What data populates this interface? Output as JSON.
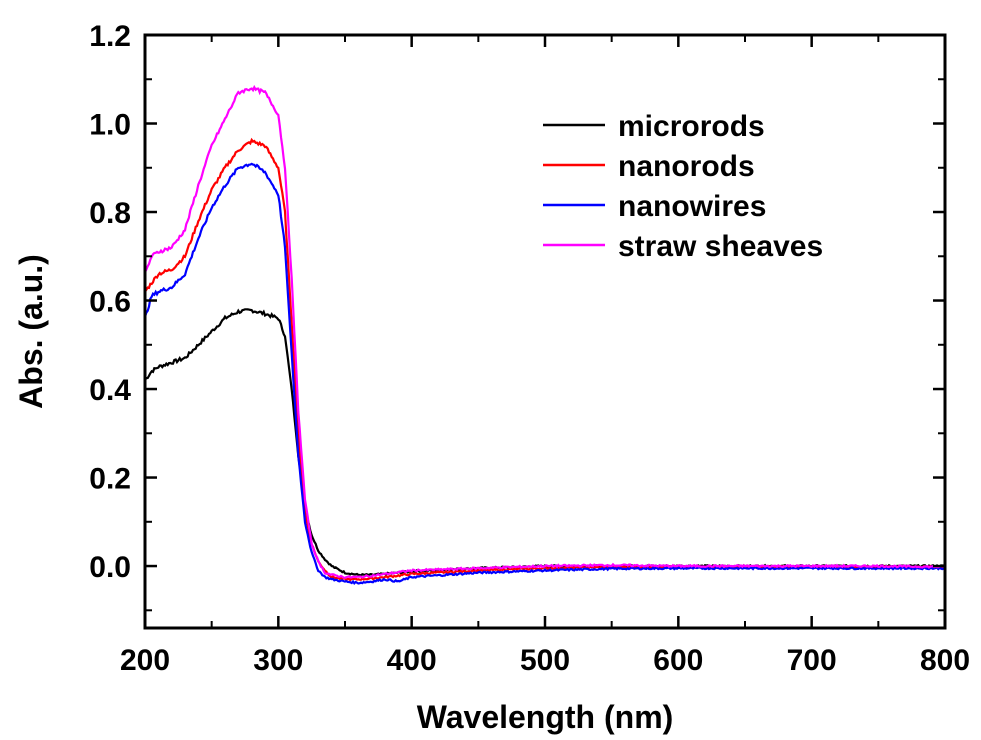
{
  "chart_data": {
    "type": "line",
    "title": "",
    "xlabel": "Wavelength (nm)",
    "ylabel": "Abs. (a.u.)",
    "xlim": [
      200,
      800
    ],
    "ylim": [
      -0.14,
      1.2
    ],
    "xticks": [
      200,
      300,
      400,
      500,
      600,
      700,
      800
    ],
    "xtick_labels": [
      "200",
      "300",
      "400",
      "500",
      "600",
      "700",
      "800"
    ],
    "yticks": [
      0.0,
      0.2,
      0.4,
      0.6,
      0.8,
      1.0,
      1.2
    ],
    "ytick_labels": [
      "0.0",
      "0.2",
      "0.4",
      "0.6",
      "0.8",
      "1.0",
      "1.2"
    ],
    "grid": false,
    "legend_position": "top-right",
    "series": [
      {
        "name": "microrods",
        "color": "#000000",
        "x": [
          200,
          205,
          210,
          220,
          230,
          240,
          250,
          260,
          270,
          280,
          290,
          300,
          305,
          310,
          315,
          320,
          325,
          330,
          335,
          340,
          350,
          360,
          370,
          380,
          400,
          450,
          500,
          550,
          600,
          650,
          700,
          750,
          800
        ],
        "y": [
          0.42,
          0.44,
          0.45,
          0.46,
          0.47,
          0.5,
          0.53,
          0.56,
          0.575,
          0.578,
          0.57,
          0.56,
          0.52,
          0.4,
          0.25,
          0.13,
          0.07,
          0.035,
          0.015,
          0.0,
          -0.015,
          -0.02,
          -0.02,
          -0.018,
          -0.012,
          -0.005,
          0.0,
          0.0,
          0.0,
          0.0,
          0.0,
          0.0,
          0.0
        ]
      },
      {
        "name": "nanorods",
        "color": "#ff0000",
        "x": [
          200,
          205,
          210,
          220,
          230,
          240,
          250,
          260,
          270,
          280,
          290,
          300,
          305,
          310,
          315,
          320,
          325,
          330,
          335,
          340,
          350,
          360,
          370,
          380,
          400,
          450,
          500,
          550,
          600,
          650,
          700,
          750,
          800
        ],
        "y": [
          0.62,
          0.64,
          0.66,
          0.67,
          0.7,
          0.78,
          0.85,
          0.9,
          0.94,
          0.96,
          0.95,
          0.9,
          0.8,
          0.55,
          0.3,
          0.12,
          0.05,
          0.01,
          -0.01,
          -0.025,
          -0.03,
          -0.03,
          -0.028,
          -0.025,
          -0.018,
          -0.01,
          -0.005,
          -0.002,
          -0.002,
          -0.002,
          -0.002,
          -0.002,
          -0.002
        ]
      },
      {
        "name": "nanowires",
        "color": "#0000ff",
        "x": [
          200,
          205,
          210,
          220,
          230,
          240,
          250,
          260,
          270,
          280,
          290,
          300,
          305,
          310,
          315,
          320,
          325,
          330,
          335,
          340,
          350,
          360,
          370,
          380,
          390,
          400,
          450,
          500,
          550,
          600,
          650,
          700,
          750,
          800
        ],
        "y": [
          0.56,
          0.61,
          0.62,
          0.63,
          0.66,
          0.74,
          0.81,
          0.86,
          0.9,
          0.91,
          0.89,
          0.84,
          0.72,
          0.48,
          0.25,
          0.1,
          0.03,
          -0.01,
          -0.025,
          -0.03,
          -0.035,
          -0.038,
          -0.035,
          -0.03,
          -0.035,
          -0.025,
          -0.015,
          -0.01,
          -0.006,
          -0.005,
          -0.005,
          -0.005,
          -0.005,
          -0.005
        ]
      },
      {
        "name": "straw sheaves",
        "color": "#ff00ff",
        "x": [
          200,
          205,
          210,
          220,
          230,
          240,
          250,
          260,
          270,
          280,
          290,
          300,
          305,
          310,
          315,
          320,
          325,
          330,
          335,
          340,
          350,
          360,
          370,
          380,
          400,
          450,
          500,
          550,
          600,
          650,
          700,
          750,
          800
        ],
        "y": [
          0.66,
          0.7,
          0.71,
          0.72,
          0.76,
          0.86,
          0.95,
          1.01,
          1.07,
          1.08,
          1.07,
          1.02,
          0.9,
          0.65,
          0.35,
          0.15,
          0.05,
          0.01,
          -0.015,
          -0.02,
          -0.025,
          -0.025,
          -0.022,
          -0.018,
          -0.01,
          -0.005,
          0.0,
          0.002,
          0.0,
          0.0,
          0.0,
          0.0,
          -0.002
        ]
      }
    ]
  }
}
